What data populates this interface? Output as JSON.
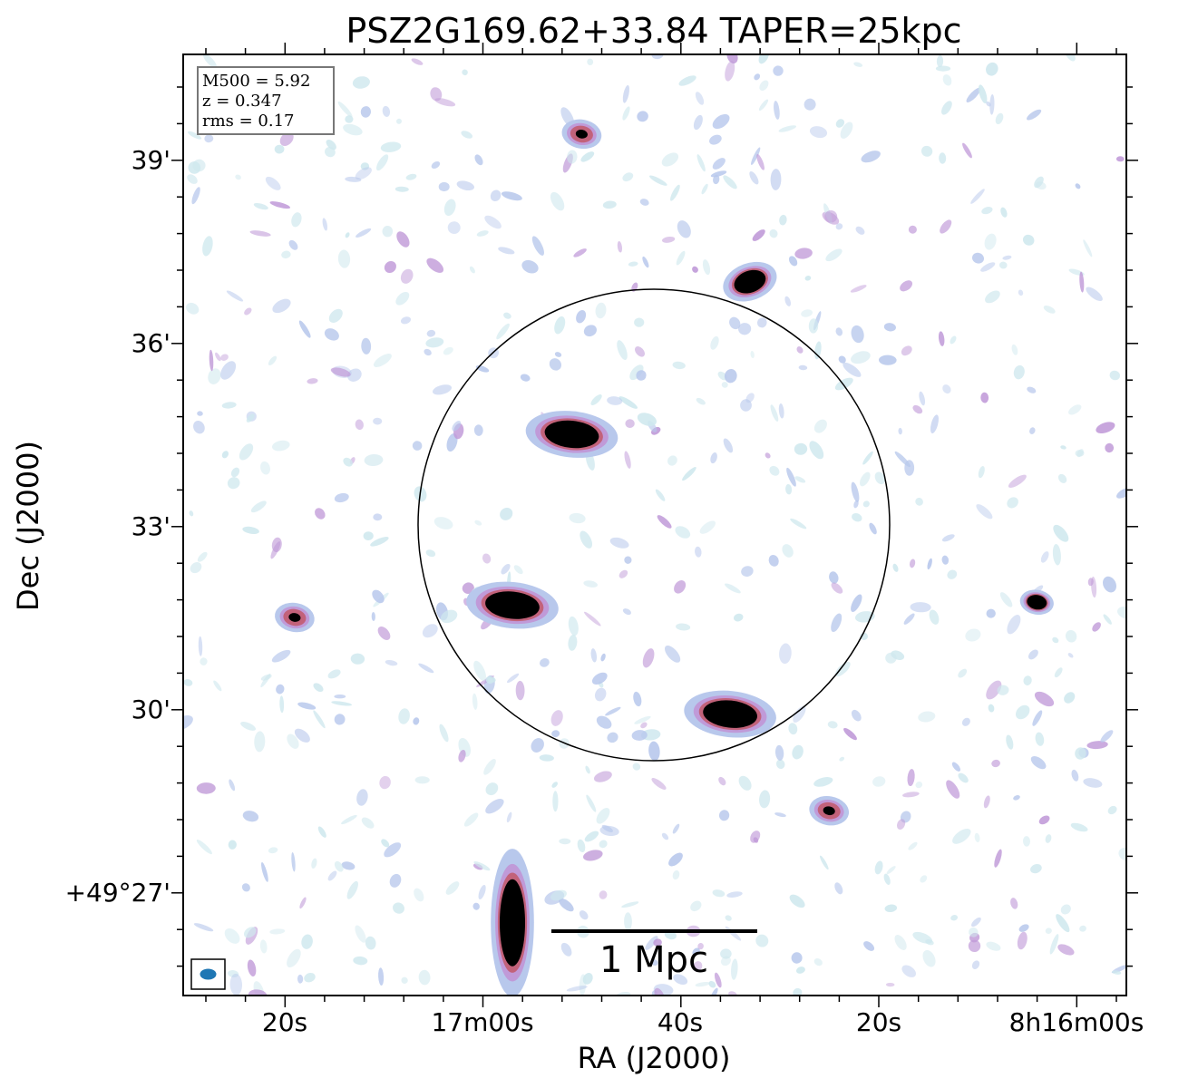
{
  "title": "PSZ2G169.62+33.84 TAPER=25kpc",
  "xlabel": "RA (J2000)",
  "ylabel": "Dec (J2000)",
  "x_ticks": [
    "20s",
    "17m00s",
    "40s",
    "20s",
    "8h16m00s"
  ],
  "y_ticks": [
    "39'",
    "36'",
    "33'",
    "30'",
    "+49°27'"
  ],
  "info": {
    "mass": "M500 = 5.92",
    "redshift": "z = 0.347",
    "rms": "rms = 0.17"
  },
  "scale_bar": "1 Mpc",
  "colors": {
    "faint": "#cfe8ee",
    "low": "#b8c8ec",
    "mid": "#c09ad8",
    "high": "#c2627a",
    "core": "#000000",
    "beam": "#1f77b4"
  },
  "sources": [
    {
      "ra": "8h16m57s",
      "dec": "+49°31'42\"",
      "level": "strong",
      "kind": "extended"
    },
    {
      "ra": "8h17m19s",
      "dec": "+49°31'30\"",
      "level": "medium",
      "kind": "point"
    },
    {
      "ra": "8h16m51s",
      "dec": "+49°34'30\"",
      "level": "strong",
      "kind": "extended"
    },
    {
      "ra": "8h16m35s",
      "dec": "+49°29'55\"",
      "level": "strong",
      "kind": "extended"
    },
    {
      "ra": "8h16m50s",
      "dec": "+49°39'25\"",
      "level": "medium",
      "kind": "point"
    },
    {
      "ra": "8h16m33s",
      "dec": "+49°37'00\"",
      "level": "strong",
      "kind": "double"
    },
    {
      "ra": "8h16m04s",
      "dec": "+49°31'45\"",
      "level": "strong",
      "kind": "point"
    },
    {
      "ra": "8h16m57s",
      "dec": "+49°26'30\"",
      "level": "strong",
      "kind": "tail"
    },
    {
      "ra": "8h16m25s",
      "dec": "+49°28'20\"",
      "level": "medium",
      "kind": "point"
    }
  ]
}
